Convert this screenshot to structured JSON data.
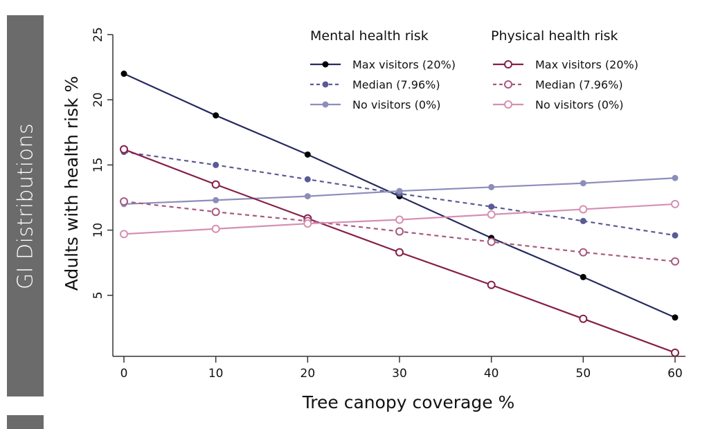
{
  "sidebar": {
    "tab_label": "GI Distributions",
    "tab_color": "#6b6b6b"
  },
  "chart_data": {
    "type": "line",
    "title": "",
    "xlabel": "Tree canopy coverage %",
    "ylabel": "Adults with health risk %",
    "x": [
      0,
      10,
      20,
      30,
      40,
      50,
      60
    ],
    "xlim": [
      0,
      60
    ],
    "ylim": [
      0,
      25
    ],
    "xticks": [
      0,
      10,
      20,
      30,
      40,
      50,
      60
    ],
    "yticks": [
      5,
      10,
      15,
      20,
      25
    ],
    "grid": false,
    "legend_placement": "top-right",
    "legend_groups": [
      {
        "title": "Mental health risk",
        "entries": [
          "Max visitors (20%)",
          "Median (7.96%)",
          "No visitors (0%)"
        ]
      },
      {
        "title": "Physical health risk",
        "entries": [
          "Max visitors (20%)",
          "Median (7.96%)",
          "No visitors (0%)"
        ]
      }
    ],
    "series": [
      {
        "name": "Mental health risk - Max visitors (20%)",
        "group": "mental",
        "color": "#262a5e",
        "marker_color": "#000000",
        "dashed": false,
        "marker": "filled",
        "values": [
          22.0,
          18.8,
          15.8,
          12.6,
          9.4,
          6.4,
          3.3
        ]
      },
      {
        "name": "Mental health risk - Median (7.96%)",
        "group": "mental",
        "color": "#5a5a96",
        "marker_color": "#5a5a96",
        "dashed": true,
        "marker": "filled",
        "values": [
          16.0,
          15.0,
          13.9,
          12.8,
          11.8,
          10.7,
          9.6
        ]
      },
      {
        "name": "Mental health risk - No visitors (0%)",
        "group": "mental",
        "color": "#8d8dbb",
        "marker_color": "#8d8dbb",
        "dashed": false,
        "marker": "filled",
        "values": [
          12.0,
          12.3,
          12.6,
          13.0,
          13.3,
          13.6,
          14.0
        ]
      },
      {
        "name": "Physical health risk - Max visitors (20%)",
        "group": "physical",
        "color": "#861e48",
        "marker_color": "#861e48",
        "dashed": false,
        "marker": "open",
        "values": [
          16.2,
          13.5,
          10.9,
          8.3,
          5.8,
          3.2,
          0.6
        ]
      },
      {
        "name": "Physical health risk - Median (7.96%)",
        "group": "physical",
        "color": "#a8587e",
        "marker_color": "#a8587e",
        "dashed": true,
        "marker": "open",
        "values": [
          12.2,
          11.4,
          10.7,
          9.9,
          9.1,
          8.3,
          7.6
        ]
      },
      {
        "name": "Physical health risk - No visitors (0%)",
        "group": "physical",
        "color": "#d68fb1",
        "marker_color": "#d68fb1",
        "dashed": false,
        "marker": "open",
        "values": [
          9.7,
          10.1,
          10.5,
          10.8,
          11.2,
          11.6,
          12.0
        ]
      }
    ]
  }
}
